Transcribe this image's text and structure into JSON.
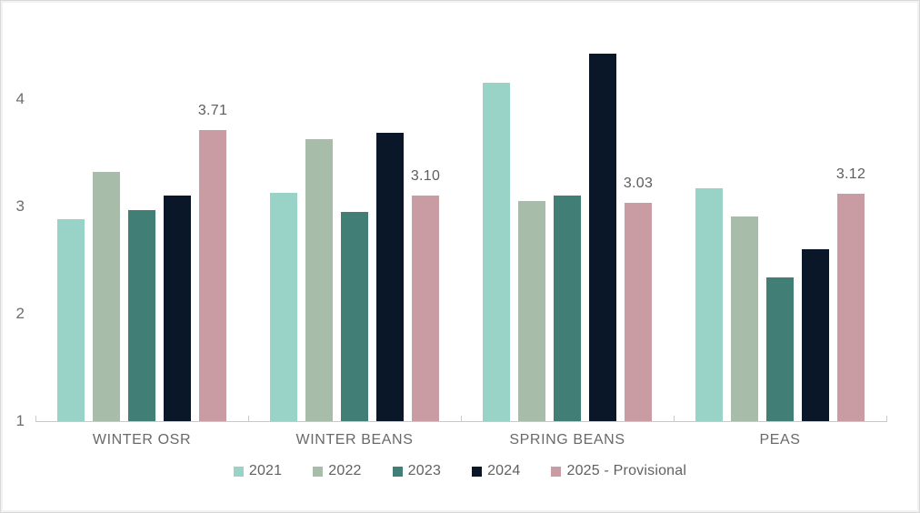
{
  "chart_data": {
    "type": "bar",
    "title": "",
    "xlabel": "",
    "ylabel": "",
    "categories": [
      "WINTER OSR",
      "WINTER BEANS",
      "SPRING BEANS",
      "PEAS"
    ],
    "series": [
      {
        "name": "2021",
        "color": "#99d2c7",
        "values": [
          2.88,
          3.13,
          4.15,
          3.17
        ]
      },
      {
        "name": "2022",
        "color": "#a7bda9",
        "values": [
          3.32,
          3.63,
          3.05,
          2.91
        ]
      },
      {
        "name": "2023",
        "color": "#417e76",
        "values": [
          2.97,
          2.95,
          3.1,
          2.34
        ]
      },
      {
        "name": "2024",
        "color": "#0a1728",
        "values": [
          3.1,
          3.69,
          4.42,
          2.6
        ]
      },
      {
        "name": "2025 - Provisional",
        "color": "#c99ba2",
        "values": [
          3.71,
          3.1,
          3.03,
          3.12
        ],
        "data_labels": [
          "3.71",
          "3.10",
          "3.03",
          "3.12"
        ]
      }
    ],
    "yticks": [
      "1",
      "2",
      "3",
      "4"
    ],
    "ylim": [
      1,
      4.57
    ],
    "grid": false,
    "legend_position": "bottom",
    "axis_color": "#c9c9c9",
    "tick_label_color": "#6d6d6d"
  }
}
